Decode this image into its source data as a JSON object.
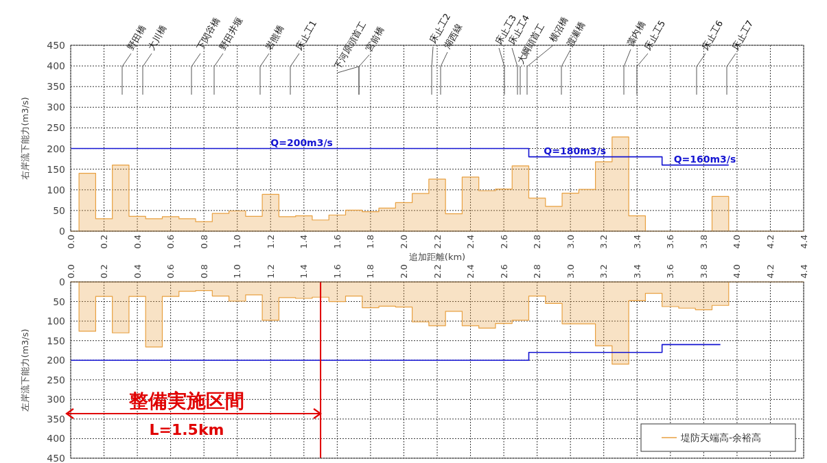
{
  "chart_data": [
    {
      "type": "area",
      "xlabel": "追加距離(km)",
      "ylabel": "右岸流下能力(m3/s)",
      "xlim": [
        0,
        4.4
      ],
      "xticks": [
        {
          "value": 0,
          "label": "0.0"
        },
        {
          "value": 0.2,
          "label": "0.2"
        },
        {
          "value": 0.4,
          "label": "0.4"
        },
        {
          "value": 0.6,
          "label": "0.6"
        },
        {
          "value": 0.8,
          "label": "0.8"
        },
        {
          "value": 1.0,
          "label": "1.0"
        },
        {
          "value": 1.2,
          "label": "1.2"
        },
        {
          "value": 1.4,
          "label": "1.4"
        },
        {
          "value": 1.6,
          "label": "1.6"
        },
        {
          "value": 1.8,
          "label": "1.8"
        },
        {
          "value": 2.0,
          "label": "2.0"
        },
        {
          "value": 2.2,
          "label": "2.2"
        },
        {
          "value": 2.4,
          "label": "2.4"
        },
        {
          "value": 2.6,
          "label": "2.6"
        },
        {
          "value": 2.8,
          "label": "2.8"
        },
        {
          "value": 3.0,
          "label": "3.0"
        },
        {
          "value": 3.2,
          "label": "3.2"
        },
        {
          "value": 3.4,
          "label": "3.4"
        },
        {
          "value": 3.6,
          "label": "3.6"
        },
        {
          "value": 3.8,
          "label": "3.8"
        },
        {
          "value": 4.0,
          "label": "4.0"
        },
        {
          "value": 4.2,
          "label": "4.2"
        },
        {
          "value": 4.4,
          "label": "4.4"
        }
      ],
      "ylim": [
        0,
        450
      ],
      "yticks": [
        0,
        50,
        100,
        150,
        200,
        250,
        300,
        350,
        400,
        450
      ],
      "grid": true,
      "series": [
        {
          "color": "#e8a040",
          "x": [
            0,
            0.05,
            0.15,
            0.25,
            0.35,
            0.45,
            0.55,
            0.65,
            0.75,
            0.85,
            0.95,
            1.05,
            1.15,
            1.25,
            1.35,
            1.45,
            1.55,
            1.65,
            1.75,
            1.85,
            1.95,
            2.05,
            2.15,
            2.25,
            2.35,
            2.45,
            2.55,
            2.65,
            2.75,
            2.85,
            2.95,
            3.05,
            3.15,
            3.25,
            3.35,
            3.45,
            3.85,
            3.95,
            4.4
          ],
          "values": [
            0,
            140,
            30,
            160,
            36,
            30,
            35,
            30,
            23,
            43,
            49,
            36,
            89,
            35,
            37,
            27,
            39,
            51,
            47,
            56,
            69,
            91,
            126,
            42,
            131,
            98,
            102,
            158,
            80,
            60,
            92,
            101,
            168,
            228,
            37,
            0,
            84,
            0,
            0
          ]
        },
        {
          "type": "step",
          "color": "#1414d2",
          "x": [
            0,
            2.75,
            3.55,
            3.95
          ],
          "values": [
            200,
            180,
            160,
            160
          ]
        }
      ],
      "annotations": [
        {
          "text": "Q=200m3/s",
          "x": 1.2,
          "y": 200
        },
        {
          "text": "Q=180m3/s",
          "x": 2.84,
          "y": 180
        },
        {
          "text": "Q=160m3/s",
          "x": 3.62,
          "y": 160
        },
        "野田橋",
        "大川橋",
        "下関谷橋",
        "野田井堰",
        "岩熊橋",
        "床止工1",
        "下河原頭首工",
        "宮前橋",
        "床止工2",
        "湖西線",
        "床止工3",
        "床止工4",
        "大綱頭首工",
        "横沼橋",
        "渡瀬橋",
        "藻内橋",
        "床止工5",
        "床止工6",
        "床止工7"
      ]
    },
    {
      "type": "area",
      "ylabel": "左岸流下能力(m3/s)",
      "xlim": [
        0,
        4.4
      ],
      "xticks": [
        {
          "value": 0,
          "label": "0.0"
        },
        {
          "value": 0.2,
          "label": "0.2"
        },
        {
          "value": 0.4,
          "label": "0.4"
        },
        {
          "value": 0.6,
          "label": "0.6"
        },
        {
          "value": 0.8,
          "label": "0.8"
        },
        {
          "value": 1.0,
          "label": "1.0"
        },
        {
          "value": 1.2,
          "label": "1.2"
        },
        {
          "value": 1.4,
          "label": "1.4"
        },
        {
          "value": 1.6,
          "label": "1.6"
        },
        {
          "value": 1.8,
          "label": "1.8"
        },
        {
          "value": 2.0,
          "label": "2.0"
        },
        {
          "value": 2.2,
          "label": "2.2"
        },
        {
          "value": 2.4,
          "label": "2.4"
        },
        {
          "value": 2.6,
          "label": "2.6"
        },
        {
          "value": 2.8,
          "label": "2.8"
        },
        {
          "value": 3.0,
          "label": "3.0"
        },
        {
          "value": 3.2,
          "label": "3.2"
        },
        {
          "value": 3.4,
          "label": "3.4"
        },
        {
          "value": 3.6,
          "label": "3.6"
        },
        {
          "value": 3.8,
          "label": "3.8"
        },
        {
          "value": 4.0,
          "label": "4.0"
        },
        {
          "value": 4.2,
          "label": "4.2"
        },
        {
          "value": 4.4,
          "label": "4.4"
        }
      ],
      "ylim": [
        450,
        0
      ],
      "yticks": [
        0,
        50,
        100,
        150,
        200,
        250,
        300,
        350,
        400,
        450
      ],
      "grid": true,
      "legend": "bottom right",
      "series": [
        {
          "name": "堤防天端高-余裕高",
          "color": "#e8a040",
          "x": [
            0,
            0.05,
            0.15,
            0.25,
            0.35,
            0.45,
            0.55,
            0.65,
            0.75,
            0.85,
            0.95,
            1.05,
            1.15,
            1.25,
            1.35,
            1.45,
            1.55,
            1.65,
            1.75,
            1.85,
            1.95,
            2.05,
            2.15,
            2.25,
            2.35,
            2.45,
            2.55,
            2.65,
            2.75,
            2.85,
            2.95,
            3.05,
            3.15,
            3.25,
            3.35,
            3.45,
            3.55,
            3.65,
            3.75,
            3.85,
            3.95,
            4.4
          ],
          "values": [
            0,
            126,
            37,
            130,
            37,
            166,
            37,
            24,
            22,
            36,
            49,
            33,
            98,
            40,
            42,
            39,
            50,
            36,
            66,
            62,
            64,
            102,
            112,
            75,
            112,
            118,
            106,
            98,
            36,
            55,
            107,
            107,
            163,
            210,
            48,
            29,
            63,
            67,
            71,
            60,
            0,
            0
          ]
        },
        {
          "type": "step",
          "color": "#1414d2",
          "x": [
            0,
            2.75,
            3.55,
            3.9
          ],
          "values": [
            200,
            180,
            160,
            160
          ]
        }
      ],
      "ref_lines": [
        {
          "axis": "x",
          "value": 1.5,
          "color": "#e00000"
        }
      ],
      "annotations": [
        "整備実施区間",
        "L=1.5km"
      ]
    }
  ]
}
